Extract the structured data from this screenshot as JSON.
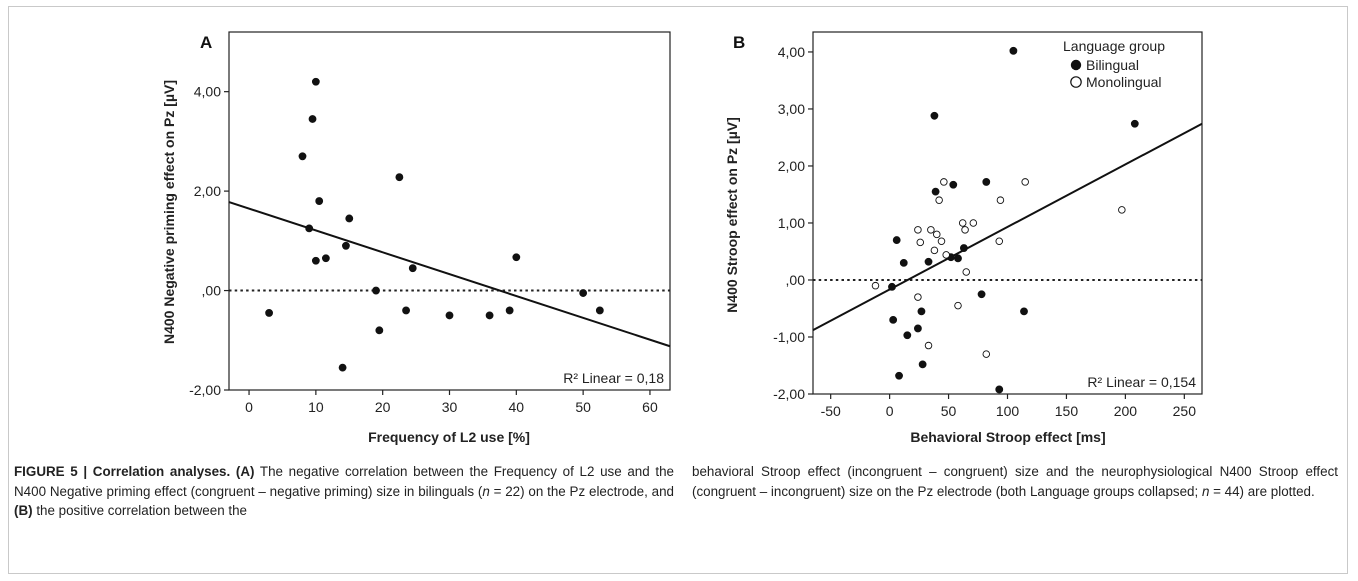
{
  "panels": [
    {
      "letter": "A",
      "ylabel": "N400 Negative priming effect on Pz [µV]",
      "xlabel": "Frequency of L2 use [%]",
      "xticks": [
        "0",
        "10",
        "20",
        "30",
        "40",
        "50",
        "60"
      ],
      "yticks": [
        "-2,00",
        ",00",
        "2,00",
        "4,00"
      ],
      "r2_text": "R² Linear = 0,18"
    },
    {
      "letter": "B",
      "ylabel": "N400 Stroop effect on Pz [µV]",
      "xlabel": "Behavioral Stroop effect [ms]",
      "xticks": [
        "-50",
        "0",
        "50",
        "100",
        "150",
        "200",
        "250"
      ],
      "yticks": [
        "-2,00",
        "-1,00",
        ",00",
        "1,00",
        "2,00",
        "3,00",
        "4,00"
      ],
      "r2_text": "R² Linear = 0,154",
      "legend": {
        "title": "Language group",
        "items": [
          "Bilingual",
          "Monolingual"
        ]
      }
    }
  ],
  "caption": {
    "fig_label": "FIGURE 5 | Correlation analyses.",
    "a_marker": "(A)",
    "a_text_1": " The negative correlation between the Frequency of L2 use and the N400 Negative priming effect (congruent – negative priming) size in bilinguals (",
    "n_symbol": "n",
    "a_n": " = 22) on the Pz electrode, and ",
    "b_marker": "(B)",
    "b_text_1": " the positive correlation between the",
    "right_text_1": "behavioral Stroop effect (incongruent – congruent) size and the neurophysiological N400 Stroop effect (congruent – incongruent) size on the Pz electrode (both Language groups collapsed; ",
    "right_n": " = 44) are plotted."
  },
  "chart_data": [
    {
      "type": "scatter",
      "panel": "A",
      "xlabel": "Frequency of L2 use [%]",
      "ylabel": "N400 Negative priming effect on Pz [µV]",
      "xlim": [
        -3,
        63
      ],
      "ylim": [
        -2.0,
        5.2
      ],
      "reference_line_y": 0,
      "series": [
        {
          "name": "Bilingual",
          "marker": "filled",
          "points": [
            [
              3,
              -0.45
            ],
            [
              8,
              2.7
            ],
            [
              9,
              1.25
            ],
            [
              9.5,
              3.45
            ],
            [
              10,
              4.2
            ],
            [
              10,
              0.6
            ],
            [
              10.5,
              1.8
            ],
            [
              11.5,
              0.65
            ],
            [
              14,
              -1.55
            ],
            [
              14.5,
              0.9
            ],
            [
              15,
              1.45
            ],
            [
              19,
              0.0
            ],
            [
              19.5,
              -0.8
            ],
            [
              22.5,
              2.28
            ],
            [
              23.5,
              -0.4
            ],
            [
              24.5,
              0.45
            ],
            [
              30,
              -0.5
            ],
            [
              36,
              -0.5
            ],
            [
              39,
              -0.4
            ],
            [
              40,
              0.67
            ],
            [
              50,
              -0.05
            ],
            [
              52.5,
              -0.4
            ]
          ]
        }
      ],
      "fit_line": {
        "x": [
          -3,
          63
        ],
        "y": [
          1.78,
          -1.12
        ]
      },
      "r2": 0.18
    },
    {
      "type": "scatter",
      "panel": "B",
      "xlabel": "Behavioral Stroop effect [ms]",
      "ylabel": "N400 Stroop effect on Pz [µV]",
      "xlim": [
        -65,
        265
      ],
      "ylim": [
        -2.0,
        4.35
      ],
      "reference_line_y": 0,
      "series": [
        {
          "name": "Bilingual",
          "marker": "filled",
          "points": [
            [
              2,
              -0.12
            ],
            [
              3,
              -0.7
            ],
            [
              6,
              0.7
            ],
            [
              8,
              -1.68
            ],
            [
              12,
              0.3
            ],
            [
              15,
              -0.97
            ],
            [
              24,
              -0.85
            ],
            [
              27,
              -0.55
            ],
            [
              28,
              -1.48
            ],
            [
              33,
              0.32
            ],
            [
              38,
              2.88
            ],
            [
              39,
              1.55
            ],
            [
              52,
              0.4
            ],
            [
              54,
              1.67
            ],
            [
              58,
              0.38
            ],
            [
              63,
              0.56
            ],
            [
              78,
              -0.25
            ],
            [
              82,
              1.72
            ],
            [
              93,
              -1.92
            ],
            [
              105,
              4.02
            ],
            [
              114,
              -0.55
            ],
            [
              208,
              2.74
            ]
          ]
        },
        {
          "name": "Monolingual",
          "marker": "open",
          "points": [
            [
              -12,
              -0.1
            ],
            [
              24,
              0.88
            ],
            [
              24,
              -0.3
            ],
            [
              26,
              0.66
            ],
            [
              33,
              -1.15
            ],
            [
              35,
              0.88
            ],
            [
              38,
              0.52
            ],
            [
              40,
              0.8
            ],
            [
              42,
              1.4
            ],
            [
              44,
              0.68
            ],
            [
              46,
              1.72
            ],
            [
              48,
              0.44
            ],
            [
              58,
              -0.45
            ],
            [
              62,
              1.0
            ],
            [
              64,
              0.88
            ],
            [
              65,
              0.14
            ],
            [
              71,
              1.0
            ],
            [
              82,
              -1.3
            ],
            [
              93,
              0.68
            ],
            [
              94,
              1.4
            ],
            [
              115,
              1.72
            ],
            [
              197,
              1.23
            ]
          ]
        }
      ],
      "fit_line": {
        "x": [
          -65,
          265
        ],
        "y": [
          -0.88,
          2.74
        ]
      },
      "r2": 0.154
    }
  ]
}
